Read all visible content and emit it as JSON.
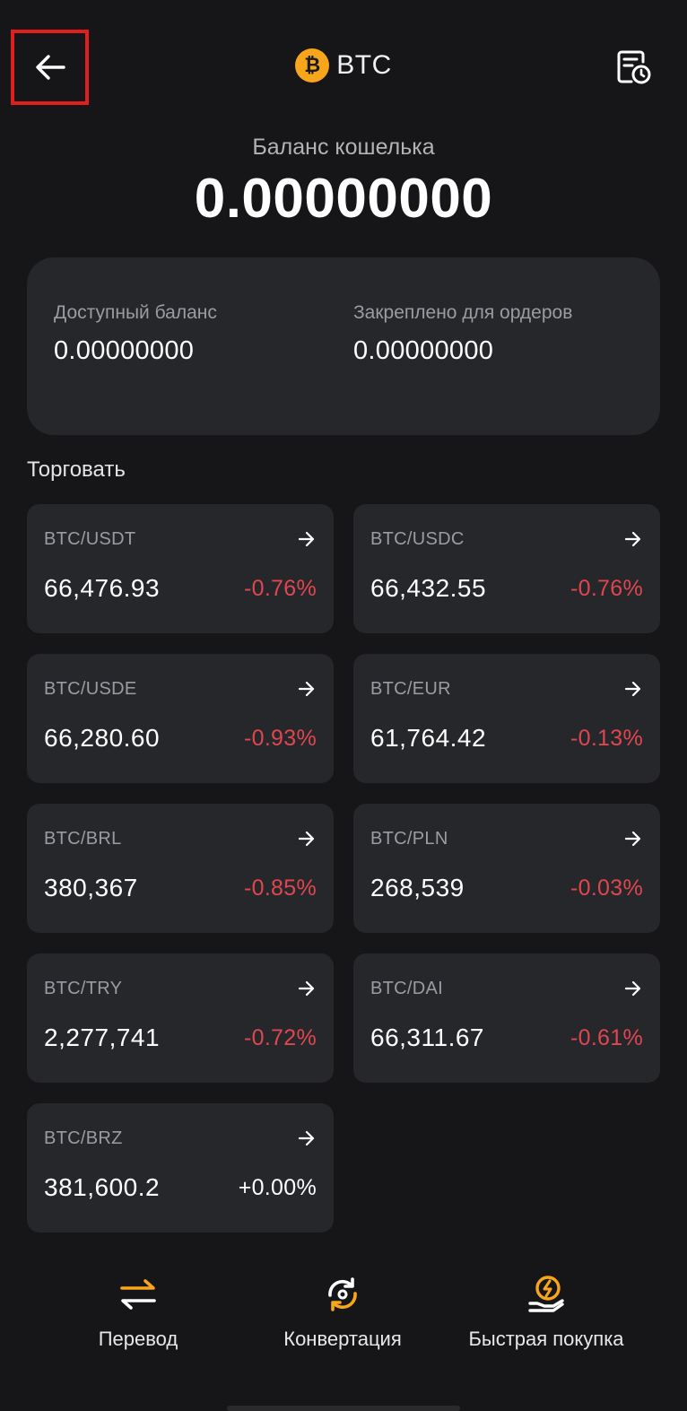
{
  "header": {
    "title": "BTC",
    "coin_symbol": "₿",
    "back_icon": "arrow-left-icon",
    "history_icon": "document-clock-icon"
  },
  "wallet": {
    "label": "Баланс кошелька",
    "value": "0.00000000"
  },
  "balances": {
    "available_label": "Доступный баланс",
    "available_value": "0.00000000",
    "locked_label": "Закреплено для ордеров",
    "locked_value": "0.00000000"
  },
  "trade": {
    "label": "Торговать",
    "pairs": [
      {
        "name": "BTC/USDT",
        "price": "66,476.93",
        "change": "-0.76%"
      },
      {
        "name": "BTC/USDC",
        "price": "66,432.55",
        "change": "-0.76%"
      },
      {
        "name": "BTC/USDE",
        "price": "66,280.60",
        "change": "-0.93%"
      },
      {
        "name": "BTC/EUR",
        "price": "61,764.42",
        "change": "-0.13%"
      },
      {
        "name": "BTC/BRL",
        "price": "380,367",
        "change": "-0.85%"
      },
      {
        "name": "BTC/PLN",
        "price": "268,539",
        "change": "-0.03%"
      },
      {
        "name": "BTC/TRY",
        "price": "2,277,741",
        "change": "-0.72%"
      },
      {
        "name": "BTC/DAI",
        "price": "66,311.67",
        "change": "-0.61%"
      },
      {
        "name": "BTC/BRZ",
        "price": "381,600.2",
        "change": "+0.00%"
      }
    ]
  },
  "bottom_bar": {
    "transfer_label": "Перевод",
    "convert_label": "Конвертация",
    "quick_buy_label": "Быстрая покупка"
  },
  "colors": {
    "background": "#161618",
    "card": "#26272b",
    "negative": "#e0464f",
    "accent": "#f7a51b",
    "highlight_border": "#e01e1e"
  }
}
